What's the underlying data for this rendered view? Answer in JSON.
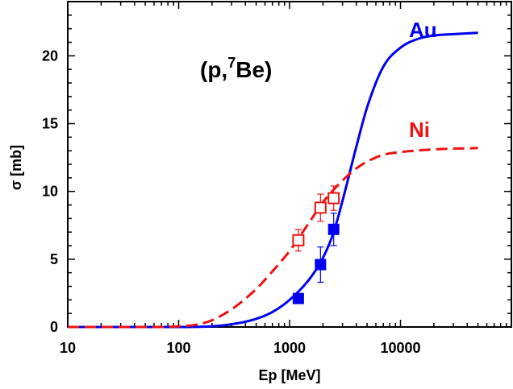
{
  "chart_data": {
    "type": "line",
    "annotation": {
      "prefix": "(p,",
      "superscript": "7",
      "suffix": "Be)"
    },
    "xlabel": "Ep [MeV]",
    "ylabel": "σ [mb]",
    "xscale": "log",
    "xlim": [
      10,
      100000
    ],
    "ylim": [
      0,
      24
    ],
    "xticks": [
      10,
      100,
      1000,
      10000
    ],
    "xtick_labels": [
      "10",
      "100",
      "1000",
      "10000"
    ],
    "yticks": [
      0,
      5,
      10,
      15,
      20
    ],
    "ytick_labels": [
      "0",
      "5",
      "10",
      "15",
      "20"
    ],
    "grid": false,
    "series": [
      {
        "name": "Au",
        "color": "#0000ee",
        "style": "solid",
        "curve": {
          "x": [
            10,
            100,
            200,
            300,
            500,
            700,
            1000,
            1500,
            2000,
            2500,
            3000,
            4000,
            5000,
            7000,
            10000,
            15000,
            20000,
            30000,
            50000
          ],
          "y": [
            0,
            0,
            0.05,
            0.2,
            0.6,
            1.1,
            2.0,
            3.5,
            5.1,
            7.0,
            9.3,
            13.3,
            16.2,
            19.2,
            20.6,
            21.3,
            21.5,
            21.6,
            21.7
          ]
        },
        "points": {
          "x": [
            1200,
            1900,
            2500
          ],
          "y": [
            2.1,
            4.6,
            7.2
          ],
          "err": [
            0.2,
            1.3,
            1.2
          ],
          "marker": "filled-square"
        }
      },
      {
        "name": "Ni",
        "color": "#ee1111",
        "style": "dashed",
        "curve": {
          "x": [
            10,
            70,
            100,
            150,
            200,
            300,
            500,
            700,
            1000,
            1500,
            2000,
            3000,
            4000,
            5000,
            7000,
            10000,
            20000,
            50000
          ],
          "y": [
            0,
            0,
            0.05,
            0.2,
            0.5,
            1.3,
            2.8,
            4.1,
            5.6,
            7.7,
            9.2,
            10.8,
            11.7,
            12.2,
            12.7,
            12.9,
            13.1,
            13.2
          ]
        },
        "points": {
          "x": [
            1200,
            1900,
            2500
          ],
          "y": [
            6.4,
            8.8,
            9.5
          ],
          "err": [
            0.8,
            1.0,
            0.9
          ],
          "marker": "open-square"
        }
      }
    ]
  }
}
